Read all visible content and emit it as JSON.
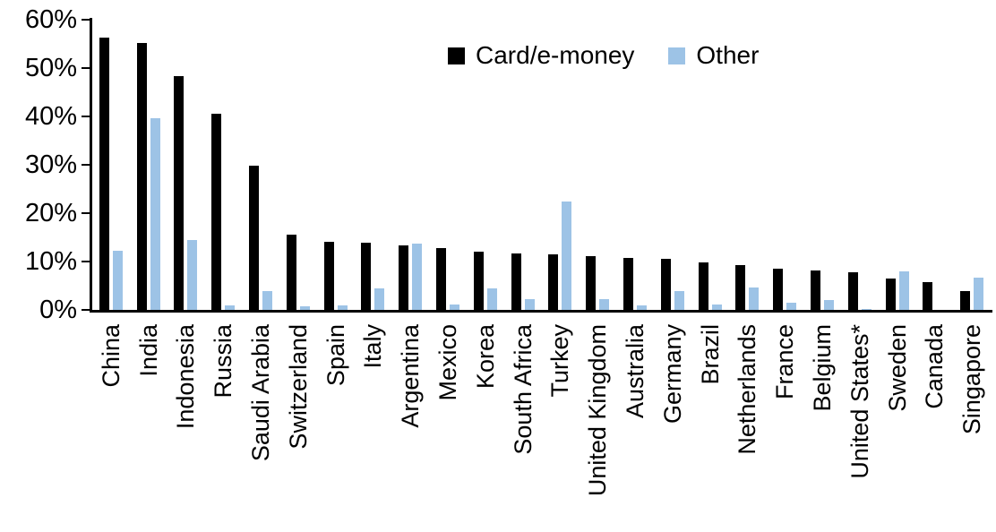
{
  "chart_data": {
    "type": "bar",
    "title": "",
    "xlabel": "",
    "ylabel": "",
    "ylim": [
      0,
      60
    ],
    "grid": false,
    "legend_position": "top-center",
    "y_ticks": [
      0,
      10,
      20,
      30,
      40,
      50,
      60
    ],
    "y_tick_labels": [
      "0%",
      "10%",
      "20%",
      "30%",
      "40%",
      "50%",
      "60%"
    ],
    "categories": [
      "China",
      "India",
      "Indonesia",
      "Russia",
      "Saudi Arabia",
      "Switzerland",
      "Spain",
      "Italy",
      "Argentina",
      "Mexico",
      "Korea",
      "South Africa",
      "Turkey",
      "United Kingdom",
      "Australia",
      "Germany",
      "Brazil",
      "Netherlands",
      "France",
      "Belgium",
      "United States*",
      "Sweden",
      "Canada",
      "Singapore"
    ],
    "series": [
      {
        "name": "Card/e-money",
        "color": "#000000",
        "values": [
          56.3,
          55.1,
          48.3,
          40.5,
          29.8,
          15.5,
          14.1,
          13.9,
          13.3,
          12.8,
          12.1,
          11.7,
          11.5,
          11.1,
          10.7,
          10.5,
          9.9,
          9.2,
          8.6,
          8.1,
          7.8,
          6.4,
          5.8,
          3.8
        ]
      },
      {
        "name": "Other",
        "color": "#9DC3E6",
        "values": [
          12.2,
          39.7,
          14.4,
          0.9,
          3.8,
          0.7,
          0.9,
          4.5,
          13.7,
          1.2,
          4.5,
          2.3,
          22.5,
          2.2,
          0.9,
          3.9,
          1.1,
          4.7,
          1.5,
          2.0,
          0.2,
          7.9,
          0,
          6.6
        ]
      }
    ]
  }
}
